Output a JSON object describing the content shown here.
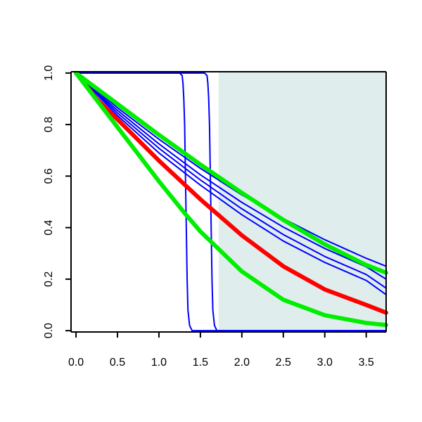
{
  "chart_data": {
    "type": "line",
    "title": "",
    "xlabel": "",
    "ylabel": "",
    "xlim": [
      -0.06,
      3.74
    ],
    "ylim": [
      -0.005,
      1.005
    ],
    "x_ticks": [
      "0.0",
      "0.5",
      "1.0",
      "1.5",
      "2.0",
      "2.5",
      "3.0",
      "3.5"
    ],
    "y_ticks": [
      "0.0",
      "0.2",
      "0.4",
      "0.6",
      "0.8",
      "1.0"
    ],
    "shaded_region": {
      "x_start": 1.72,
      "x_end": 3.74,
      "color": "#e0eded"
    },
    "series": [
      {
        "color": "#0000ff",
        "style": "thin",
        "x": [
          0.0,
          1.25,
          1.28,
          1.29,
          1.3,
          1.31,
          1.32,
          1.33,
          1.34,
          1.35,
          1.37,
          1.4,
          3.74
        ],
        "y": [
          1.0,
          1.0,
          0.99,
          0.96,
          0.9,
          0.8,
          0.6,
          0.4,
          0.2,
          0.08,
          0.02,
          0.0,
          0.0
        ]
      },
      {
        "color": "#0000ff",
        "style": "thin",
        "x": [
          0.0,
          1.55,
          1.58,
          1.59,
          1.6,
          1.61,
          1.62,
          1.63,
          1.64,
          1.65,
          1.67,
          1.7,
          3.74
        ],
        "y": [
          1.0,
          1.0,
          0.99,
          0.96,
          0.9,
          0.8,
          0.6,
          0.4,
          0.2,
          0.08,
          0.02,
          0.0,
          0.0
        ]
      },
      {
        "color": "#0000ff",
        "style": "thin",
        "x": [
          0.0,
          0.5,
          1.0,
          1.5,
          2.0,
          2.5,
          3.0,
          3.5,
          3.74
        ],
        "y": [
          1.0,
          0.865,
          0.743,
          0.63,
          0.527,
          0.435,
          0.353,
          0.281,
          0.25
        ]
      },
      {
        "color": "#0000ff",
        "style": "thin",
        "x": [
          0.0,
          0.5,
          1.0,
          1.5,
          2.0,
          2.5,
          3.0,
          3.5,
          3.74
        ],
        "y": [
          1.0,
          0.855,
          0.725,
          0.605,
          0.498,
          0.402,
          0.319,
          0.248,
          0.2
        ]
      },
      {
        "color": "#0000ff",
        "style": "thin",
        "x": [
          0.0,
          0.5,
          1.0,
          1.5,
          2.0,
          2.5,
          3.0,
          3.5,
          3.74
        ],
        "y": [
          1.0,
          0.845,
          0.708,
          0.585,
          0.473,
          0.373,
          0.288,
          0.218,
          0.165
        ]
      },
      {
        "color": "#0000ff",
        "style": "thin",
        "x": [
          0.0,
          0.5,
          1.0,
          1.5,
          2.0,
          2.5,
          3.0,
          3.5,
          3.74
        ],
        "y": [
          1.0,
          0.835,
          0.69,
          0.565,
          0.45,
          0.348,
          0.265,
          0.195,
          0.14
        ]
      },
      {
        "color": "#ff0000",
        "style": "thick",
        "x": [
          0.0,
          0.25,
          0.5,
          1.0,
          1.5,
          2.0,
          2.5,
          3.0,
          3.5,
          3.74
        ],
        "y": [
          1.0,
          0.9,
          0.82,
          0.66,
          0.51,
          0.37,
          0.25,
          0.16,
          0.1,
          0.07
        ]
      },
      {
        "color": "#00ee00",
        "style": "thick",
        "x": [
          0.0,
          0.5,
          1.0,
          1.5,
          2.0,
          2.5,
          3.0,
          3.5,
          3.74
        ],
        "y": [
          1.0,
          0.88,
          0.76,
          0.645,
          0.535,
          0.43,
          0.335,
          0.255,
          0.225
        ]
      },
      {
        "color": "#00ee00",
        "style": "thick",
        "x": [
          0.0,
          0.5,
          1.0,
          1.3,
          1.5,
          2.0,
          2.5,
          3.0,
          3.5,
          3.74
        ],
        "y": [
          1.0,
          0.79,
          0.58,
          0.46,
          0.385,
          0.23,
          0.12,
          0.06,
          0.03,
          0.022
        ]
      }
    ]
  }
}
